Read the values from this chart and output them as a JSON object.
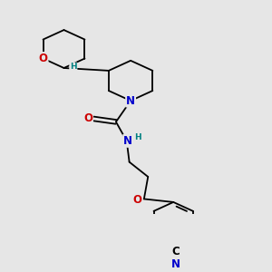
{
  "bg_color": "#e6e6e6",
  "bond_color": "#000000",
  "N_color": "#0000cc",
  "O_color": "#cc0000",
  "C_color": "#000000",
  "H_color": "#008080",
  "font_size_atom": 8.5,
  "font_size_small": 6.5,
  "line_width": 1.3,
  "figsize": [
    3.0,
    3.0
  ],
  "dpi": 100,
  "xlim": [
    0,
    10
  ],
  "ylim": [
    0,
    10
  ]
}
